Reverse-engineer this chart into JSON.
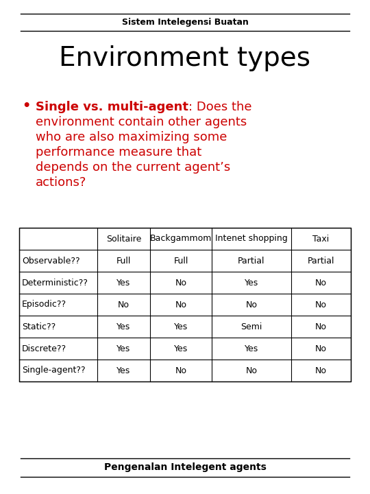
{
  "title_header": "Sistem Intelegensi Buatan",
  "title_main": "Environment types",
  "line1_bold": "Single vs. multi-agent",
  "line1_rest": ": Does the",
  "bullet_lines": [
    "environment contain other agents",
    "who are also maximizing some",
    "performance measure that",
    "depends on the current agent’s",
    "actions?"
  ],
  "table_headers": [
    "",
    "Solitaire",
    "Backgammom",
    "Intenet shopping",
    "Taxi"
  ],
  "table_rows": [
    [
      "Observable??",
      "Full",
      "Full",
      "Partial",
      "Partial"
    ],
    [
      "Deterministic??",
      "Yes",
      "No",
      "Yes",
      "No"
    ],
    [
      "Episodic??",
      "No",
      "No",
      "No",
      "No"
    ],
    [
      "Static??",
      "Yes",
      "Yes",
      "Semi",
      "No"
    ],
    [
      "Discrete??",
      "Yes",
      "Yes",
      "Yes",
      "No"
    ],
    [
      "Single-agent??",
      "Yes",
      "No",
      "No",
      "No"
    ]
  ],
  "footer": "Pengenalan Intelegent agents",
  "bg_color": "#ffffff",
  "text_color": "#000000",
  "red_color": "#cc0000",
  "title_fontsize": 28,
  "header_fontsize": 9,
  "bullet_fontsize": 13,
  "table_fontsize": 9,
  "footer_fontsize": 10
}
